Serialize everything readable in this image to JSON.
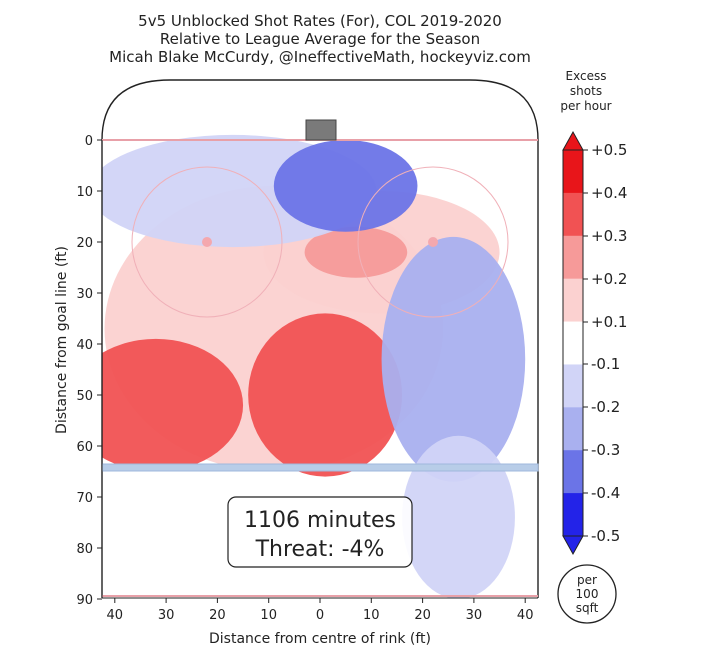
{
  "title_lines": [
    "5v5 Unblocked Shot Rates (For), COL 2019-2020",
    "Relative to League Average for the Season",
    "Micah Blake McCurdy, @IneffectiveMath, hockeyviz.com"
  ],
  "summary_box": {
    "minutes": "1106 minutes",
    "threat": "Threat: -4%"
  },
  "per_badge": [
    "per",
    "100",
    "sqft"
  ],
  "colors": {
    "red_strong": "#e8151a",
    "red_mid": "#f15253",
    "red_light": "#f69a99",
    "red_pale": "#fbd1d0",
    "blue_pale": "#d1d4f7",
    "blue_light": "#a9b0ef",
    "blue_mid": "#6b74e7",
    "blue_strong": "#2323e8",
    "rink_line": "#e8a0a8",
    "blue_line": "#a9c0e0",
    "net": "#7a7a7a"
  },
  "chart_data": {
    "type": "heatmap",
    "title": "5v5 Unblocked Shot Rates (For), COL 2019-2020",
    "subtitle": "Relative to League Average for the Season",
    "credit": "Micah Blake McCurdy, @IneffectiveMath, hockeyviz.com",
    "xlabel": "Distance from centre of rink (ft)",
    "ylabel": "Distance from goal line (ft)",
    "xlim": [
      -42.5,
      42.5
    ],
    "ylim": [
      90,
      -11
    ],
    "x_ticks": [
      40,
      30,
      20,
      10,
      0,
      10,
      20,
      30,
      40
    ],
    "y_ticks": [
      0,
      10,
      20,
      30,
      40,
      50,
      60,
      70,
      80,
      90
    ],
    "units": "Excess shots per hour, per 100 sqft",
    "colorbar": {
      "label": [
        "Excess",
        "shots",
        "per hour"
      ],
      "ticks": [
        "+0.5",
        "+0.4",
        "+0.3",
        "+0.2",
        "+0.1",
        "-0.1",
        "-0.2",
        "-0.3",
        "-0.4",
        "-0.5"
      ],
      "range": [
        -0.5,
        0.5
      ]
    },
    "regions": [
      {
        "x": -9,
        "y": 37,
        "rx": 33,
        "ry": 28,
        "level": 0.15
      },
      {
        "x": 12,
        "y": 22,
        "rx": 23,
        "ry": 12,
        "level": 0.15
      },
      {
        "x": -32,
        "y": 52,
        "rx": 17,
        "ry": 13,
        "level": 0.35
      },
      {
        "x": 1,
        "y": 50,
        "rx": 15,
        "ry": 16,
        "level": 0.35
      },
      {
        "x": 7,
        "y": 22,
        "rx": 10,
        "ry": 5,
        "level": 0.25
      },
      {
        "x": -17,
        "y": 10,
        "rx": 28,
        "ry": 11,
        "level": -0.15
      },
      {
        "x": 5,
        "y": 9,
        "rx": 14,
        "ry": 9,
        "level": -0.35
      },
      {
        "x": 26,
        "y": 43,
        "rx": 14,
        "ry": 24,
        "level": -0.25
      },
      {
        "x": 27,
        "y": 74,
        "rx": 11,
        "ry": 16,
        "level": -0.15
      }
    ]
  }
}
